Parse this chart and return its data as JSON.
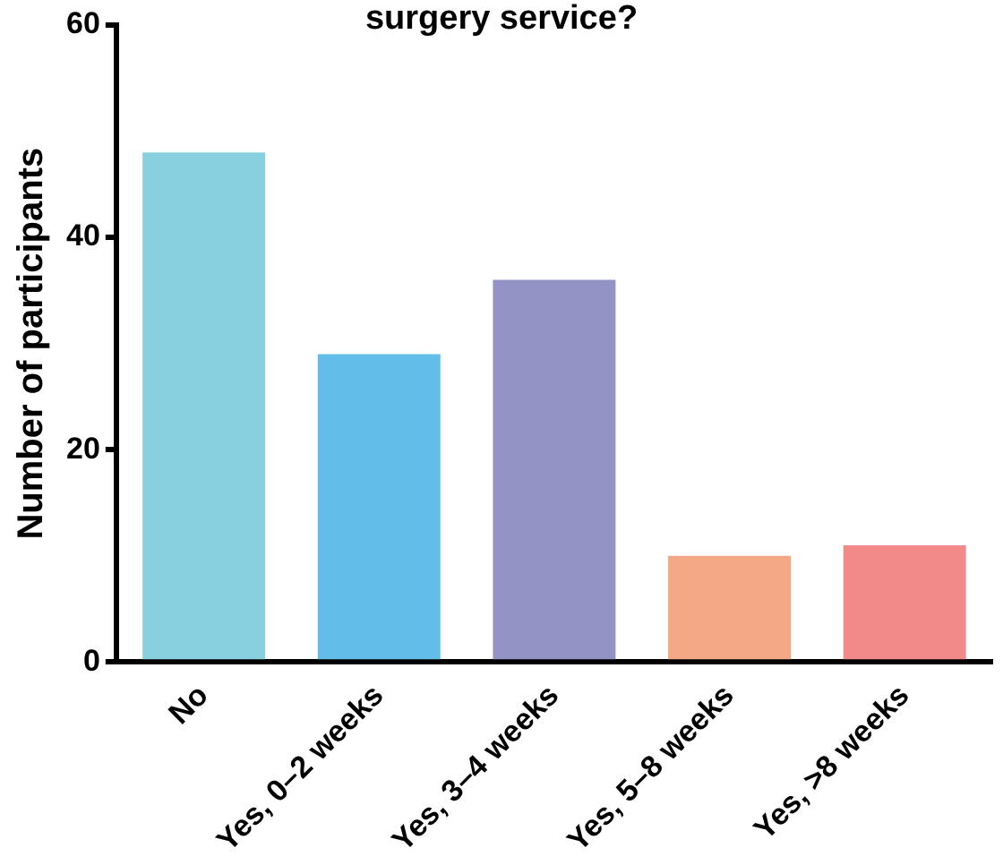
{
  "chart_data": {
    "type": "bar",
    "title": "surgery service?",
    "ylabel": "Number of participants",
    "categories": [
      "No",
      "Yes, 0–2 weeks",
      "Yes, 3–4 weeks",
      "Yes, 5–8 weeks",
      "Yes, >8 weeks"
    ],
    "values": [
      48,
      29,
      36,
      10,
      11
    ],
    "colors": [
      "#88d0df",
      "#63bde9",
      "#9493c6",
      "#f5a886",
      "#f28a8a"
    ],
    "ylim": [
      0,
      60
    ],
    "yticks": [
      0,
      20,
      40,
      60
    ],
    "grid": false,
    "legend": false
  }
}
